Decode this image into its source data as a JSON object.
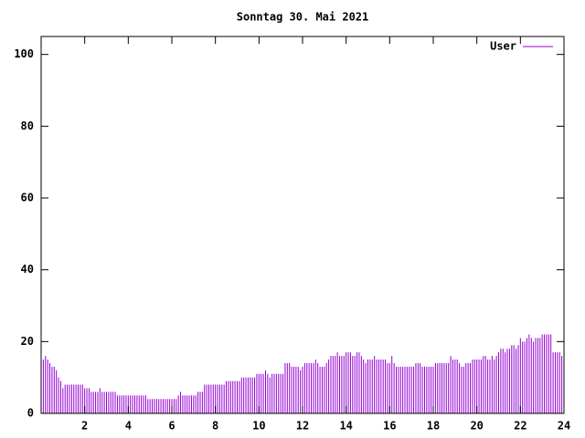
{
  "chart_data": {
    "type": "impulses",
    "title": "Sonntag 30. Mai 2021",
    "series": [
      {
        "name": "User",
        "color": "#9400d3",
        "values": [
          16,
          15,
          16,
          15,
          14,
          13,
          13,
          12,
          10,
          9,
          7,
          8,
          8,
          8,
          8,
          8,
          8,
          8,
          8,
          8,
          7,
          7,
          7,
          6,
          6,
          6,
          6,
          7,
          6,
          6,
          6,
          6,
          6,
          6,
          6,
          5,
          5,
          5,
          5,
          5,
          5,
          5,
          5,
          5,
          5,
          5,
          5,
          5,
          5,
          4,
          4,
          4,
          4,
          4,
          4,
          4,
          4,
          4,
          4,
          4,
          4,
          4,
          4,
          5,
          6,
          5,
          5,
          5,
          5,
          5,
          5,
          5,
          6,
          6,
          6,
          8,
          8,
          8,
          8,
          8,
          8,
          8,
          8,
          8,
          8,
          9,
          9,
          9,
          9,
          9,
          9,
          9,
          10,
          10,
          10,
          10,
          10,
          10,
          10,
          11,
          11,
          11,
          11,
          12,
          11,
          10,
          11,
          11,
          11,
          11,
          11,
          11,
          14,
          14,
          14,
          13,
          13,
          13,
          13,
          12,
          13,
          14,
          14,
          14,
          14,
          14,
          15,
          14,
          13,
          13,
          13,
          14,
          15,
          16,
          16,
          16,
          17,
          16,
          16,
          16,
          17,
          17,
          17,
          16,
          16,
          17,
          17,
          16,
          15,
          14,
          15,
          15,
          15,
          16,
          15,
          15,
          15,
          15,
          15,
          14,
          14,
          16,
          14,
          13,
          13,
          13,
          13,
          13,
          13,
          13,
          13,
          13,
          14,
          14,
          14,
          13,
          13,
          13,
          13,
          13,
          13,
          14,
          14,
          14,
          14,
          14,
          14,
          14,
          16,
          15,
          15,
          15,
          14,
          13,
          13,
          14,
          14,
          14,
          15,
          15,
          15,
          15,
          15,
          16,
          16,
          15,
          15,
          16,
          15,
          16,
          17,
          18,
          18,
          17,
          18,
          18,
          19,
          19,
          18,
          19,
          21,
          20,
          20,
          21,
          22,
          21,
          20,
          21,
          21,
          21,
          22,
          22,
          22,
          22,
          22,
          17,
          17,
          17,
          17,
          16
        ]
      }
    ],
    "x": [
      0,
      0.1,
      0.2,
      0.3,
      0.4,
      0.5,
      0.6,
      0.7,
      0.8,
      0.9,
      1,
      1.1,
      1.2,
      1.3,
      1.4,
      1.5,
      1.6,
      1.7,
      1.8,
      1.9,
      2,
      2.1,
      2.2,
      2.3,
      2.4,
      2.5,
      2.6,
      2.7,
      2.8,
      2.9,
      3,
      3.1,
      3.2,
      3.3,
      3.4,
      3.5,
      3.6,
      3.7,
      3.8,
      3.9,
      4,
      4.1,
      4.2,
      4.3,
      4.4,
      4.5,
      4.6,
      4.7,
      4.8,
      4.9,
      5,
      5.1,
      5.2,
      5.3,
      5.4,
      5.5,
      5.6,
      5.7,
      5.8,
      5.9,
      6,
      6.1,
      6.2,
      6.3,
      6.4,
      6.5,
      6.6,
      6.7,
      6.8,
      6.9,
      7,
      7.1,
      7.2,
      7.3,
      7.4,
      7.5,
      7.6,
      7.7,
      7.8,
      7.9,
      8,
      8.1,
      8.2,
      8.3,
      8.4,
      8.5,
      8.6,
      8.7,
      8.8,
      8.9,
      9,
      9.1,
      9.2,
      9.3,
      9.4,
      9.5,
      9.6,
      9.7,
      9.8,
      9.9,
      10,
      10.1,
      10.2,
      10.3,
      10.4,
      10.5,
      10.6,
      10.7,
      10.8,
      10.9,
      11,
      11.1,
      11.2,
      11.3,
      11.4,
      11.5,
      11.6,
      11.7,
      11.8,
      11.9,
      12,
      12.1,
      12.2,
      12.3,
      12.4,
      12.5,
      12.6,
      12.7,
      12.8,
      12.9,
      13,
      13.1,
      13.2,
      13.3,
      13.4,
      13.5,
      13.6,
      13.7,
      13.8,
      13.9,
      14,
      14.1,
      14.2,
      14.3,
      14.4,
      14.5,
      14.6,
      14.7,
      14.8,
      14.9,
      15,
      15.1,
      15.2,
      15.3,
      15.4,
      15.5,
      15.6,
      15.7,
      15.8,
      15.9,
      16,
      16.1,
      16.2,
      16.3,
      16.4,
      16.5,
      16.6,
      16.7,
      16.8,
      16.9,
      17,
      17.1,
      17.2,
      17.3,
      17.4,
      17.5,
      17.6,
      17.7,
      17.8,
      17.9,
      18,
      18.1,
      18.2,
      18.3,
      18.4,
      18.5,
      18.6,
      18.7,
      18.8,
      18.9,
      19,
      19.1,
      19.2,
      19.3,
      19.4,
      19.5,
      19.6,
      19.7,
      19.8,
      19.9,
      20,
      20.1,
      20.2,
      20.3,
      20.4,
      20.5,
      20.6,
      20.7,
      20.8,
      20.9,
      21,
      21.1,
      21.2,
      21.3,
      21.4,
      21.5,
      21.6,
      21.7,
      21.8,
      21.9,
      22,
      22.1,
      22.2,
      22.3,
      22.4,
      22.5,
      22.6,
      22.7,
      22.8,
      22.9,
      23,
      23.1,
      23.2,
      23.3,
      23.4,
      23.5,
      23.6,
      23.7,
      23.8,
      23.9
    ],
    "xlim": [
      0,
      24
    ],
    "xticks": [
      2,
      4,
      6,
      8,
      10,
      12,
      14,
      16,
      18,
      20,
      22,
      24
    ],
    "ylim": [
      0,
      105
    ],
    "yticks": [
      0,
      20,
      40,
      60,
      80,
      100
    ],
    "legend": "top-right"
  }
}
